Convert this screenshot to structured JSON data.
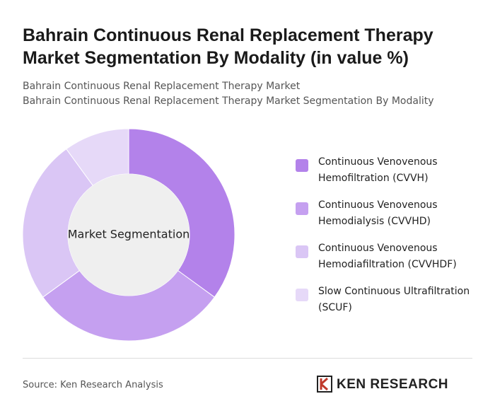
{
  "chart_data": {
    "type": "pie",
    "title": "Bahrain Continuous Renal Replacement Therapy Market Segmentation By Modality (in value %)",
    "subtitle": [
      "Bahrain Continuous Renal Replacement Therapy Market",
      "Bahrain Continuous Renal Replacement Therapy Market Segmentation By Modality"
    ],
    "center_label": "Market Segmentation",
    "categories": [
      "Continuous Venovenous Hemofiltration (CVVH)",
      "Continuous Venovenous Hemodialysis (CVVHD)",
      "Continuous Venovenous Hemodiafiltration (CVVHDF)",
      "Slow Continuous Ultrafiltration (SCUF)"
    ],
    "values": [
      35,
      30,
      25,
      10
    ],
    "colors": [
      "#b382ea",
      "#c5a0f0",
      "#dac6f5",
      "#e6d9f8"
    ]
  },
  "source": "Source: Ken Research Analysis",
  "logo": "KEN RESEARCH"
}
